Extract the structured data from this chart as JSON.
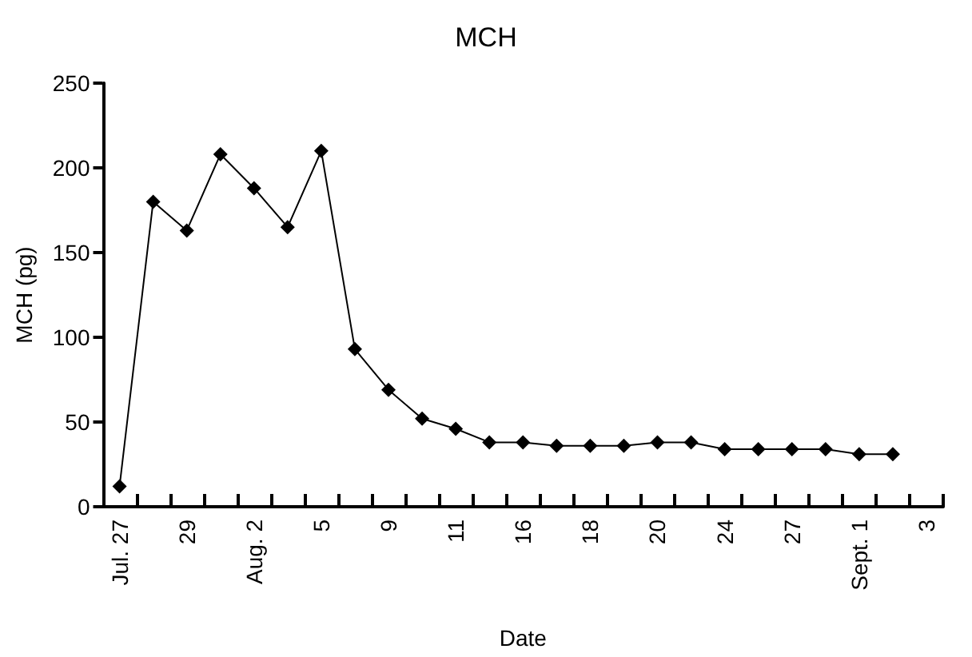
{
  "chart_data": {
    "type": "line",
    "title": "MCH",
    "xlabel": "Date",
    "ylabel": "MCH (pg)",
    "categories": [
      "Jul. 27",
      null,
      "29",
      null,
      "Aug. 2",
      null,
      "5",
      null,
      "9",
      null,
      "11",
      null,
      "16",
      null,
      "18",
      null,
      "20",
      null,
      "24",
      null,
      "27",
      null,
      "Sept. 1",
      null,
      "3"
    ],
    "series": [
      {
        "color": "#000000",
        "values": [
          12,
          180,
          163,
          208,
          188,
          165,
          210,
          93,
          69,
          52,
          46,
          38,
          38,
          36,
          36,
          36,
          38,
          38,
          34,
          34,
          34,
          34,
          31,
          31,
          null
        ]
      }
    ],
    "ylim": [
      0,
      250
    ],
    "yticks": [
      0,
      50,
      100,
      150,
      200,
      250
    ],
    "grid": false,
    "marker": "diamond",
    "line_style": "solid"
  }
}
